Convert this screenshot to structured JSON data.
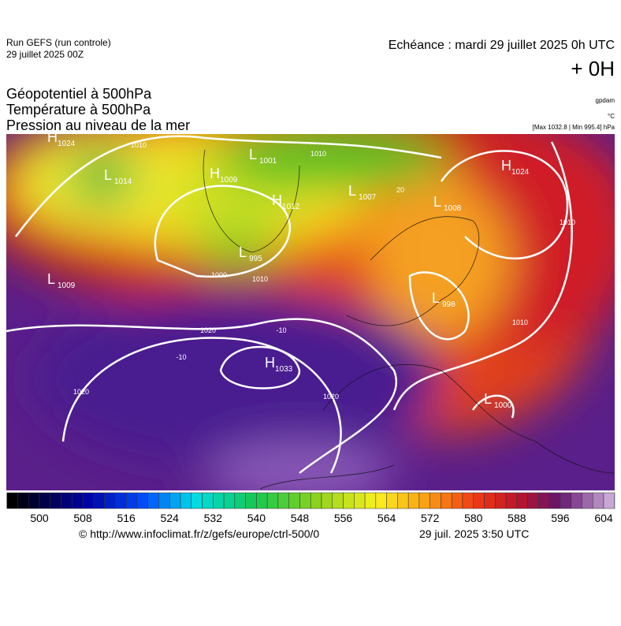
{
  "header": {
    "run": "Run GEFS (run controle)",
    "run_date": "29 juillet 2025 00Z",
    "echeance": "Echéance : mardi 29 juillet 2025 0h UTC",
    "offset": "+ 0H"
  },
  "titles": [
    "Géopotentiel à 500hPa",
    "Température à 500hPa",
    "Pression au niveau de la mer"
  ],
  "units": {
    "geopotential": "gpdam",
    "temperature": "°C",
    "pressure": "[Max 1032.8 | Min 995.4] hPa"
  },
  "centers": [
    {
      "kind": "H",
      "value": "1024"
    },
    {
      "kind": "L",
      "value": "1014"
    },
    {
      "kind": "H",
      "value": "1009"
    },
    {
      "kind": "L",
      "value": "1001"
    },
    {
      "kind": "H",
      "value": "1012"
    },
    {
      "kind": "L",
      "value": "1007"
    },
    {
      "kind": "L",
      "value": "1008"
    },
    {
      "kind": "H",
      "value": "1024"
    },
    {
      "kind": "L",
      "value": "995"
    },
    {
      "kind": "L",
      "value": "1009"
    },
    {
      "kind": "L",
      "value": "998"
    },
    {
      "kind": "H",
      "value": "1033"
    },
    {
      "kind": "L",
      "value": "1000"
    }
  ],
  "contour_labels": [
    "1010",
    "1010",
    "1020",
    "1020",
    "1020",
    "1010",
    "1000",
    "1010",
    "1010",
    "20",
    "-10",
    "-10"
  ],
  "colorbar": {
    "ticks": [
      500,
      508,
      516,
      524,
      532,
      540,
      548,
      556,
      564,
      572,
      580,
      588,
      596,
      604
    ]
  },
  "footer": {
    "source": "© http://www.infoclimat.fr/z/gefs/europe/ctrl-500/0",
    "generated": "29 juil. 2025  3:50 UTC"
  }
}
